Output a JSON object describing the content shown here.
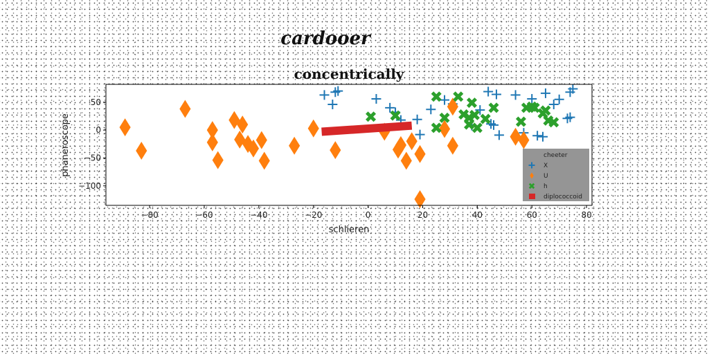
{
  "chart_data": {
    "type": "scatter",
    "suptitle": "cardooer",
    "title": "concentrically",
    "xlabel": "schlieren",
    "ylabel": "phaneroscope",
    "xlim": [
      -96,
      82
    ],
    "ylim": [
      -135,
      82
    ],
    "xticks": [
      -80,
      -60,
      -40,
      -20,
      0,
      20,
      40,
      60,
      80
    ],
    "yticks": [
      -100,
      -50,
      0,
      50
    ],
    "xtick_labels": [
      "−80",
      "−60",
      "−40",
      "−20",
      "0",
      "20",
      "40",
      "60",
      "80"
    ],
    "ytick_labels": [
      "−100",
      "−50",
      "0",
      "50"
    ],
    "grid": false,
    "legend": {
      "title": "cheeter",
      "placement": "lower right"
    },
    "series": [
      {
        "name": "X",
        "marker": "plus",
        "color": "#1f77b4",
        "points": [
          [
            -16,
            63
          ],
          [
            -12,
            68
          ],
          [
            -11,
            70
          ],
          [
            -13,
            46
          ],
          [
            3,
            56
          ],
          [
            8,
            40
          ],
          [
            10,
            32
          ],
          [
            12,
            18
          ],
          [
            18,
            19
          ],
          [
            19,
            -8
          ],
          [
            23,
            37
          ],
          [
            28,
            54
          ],
          [
            31,
            47
          ],
          [
            38,
            8
          ],
          [
            41,
            36
          ],
          [
            44,
            69
          ],
          [
            45,
            11
          ],
          [
            46,
            9
          ],
          [
            47,
            64
          ],
          [
            48,
            -9
          ],
          [
            54,
            63
          ],
          [
            57,
            -5
          ],
          [
            60,
            56
          ],
          [
            62,
            -10
          ],
          [
            64,
            -12
          ],
          [
            65,
            66
          ],
          [
            68,
            46
          ],
          [
            70,
            55
          ],
          [
            73,
            21
          ],
          [
            74,
            68
          ],
          [
            75,
            74
          ],
          [
            74,
            23
          ]
        ]
      },
      {
        "name": "U",
        "marker": "thin_diamond",
        "color": "#ff7f0e",
        "points": [
          [
            -89,
            5
          ],
          [
            -83,
            -37
          ],
          [
            -67,
            38
          ],
          [
            -57,
            0
          ],
          [
            -57,
            -22
          ],
          [
            -55,
            -54
          ],
          [
            -49,
            18
          ],
          [
            -47,
            -17
          ],
          [
            -46,
            10
          ],
          [
            -44,
            -25
          ],
          [
            -42,
            -33
          ],
          [
            -39,
            -18
          ],
          [
            -38,
            -55
          ],
          [
            -27,
            -28
          ],
          [
            -20,
            3
          ],
          [
            -12,
            -36
          ],
          [
            6,
            -3
          ],
          [
            11,
            -35
          ],
          [
            12,
            -27
          ],
          [
            14,
            -55
          ],
          [
            16,
            -20
          ],
          [
            19,
            -43
          ],
          [
            19,
            -124
          ],
          [
            28,
            2
          ],
          [
            31,
            42
          ],
          [
            31,
            -28
          ],
          [
            54,
            -12
          ],
          [
            57,
            -18
          ]
        ]
      },
      {
        "name": "h",
        "marker": "x_filled",
        "color": "#2ca02c",
        "points": [
          [
            1,
            24
          ],
          [
            10,
            26
          ],
          [
            25,
            60
          ],
          [
            25,
            4
          ],
          [
            28,
            22
          ],
          [
            33,
            60
          ],
          [
            35,
            28
          ],
          [
            37,
            22
          ],
          [
            37,
            10
          ],
          [
            38,
            49
          ],
          [
            39,
            27
          ],
          [
            40,
            4
          ],
          [
            43,
            20
          ],
          [
            46,
            40
          ],
          [
            56,
            15
          ],
          [
            58,
            40
          ],
          [
            60,
            42
          ],
          [
            61,
            40
          ],
          [
            64,
            30
          ],
          [
            65,
            35
          ],
          [
            66,
            17
          ],
          [
            68,
            14
          ]
        ]
      },
      {
        "name": "diplococcoid",
        "marker": "line_segment",
        "color": "#d62728",
        "points": [
          [
            -17,
            -3
          ],
          [
            16,
            8
          ]
        ]
      }
    ]
  }
}
